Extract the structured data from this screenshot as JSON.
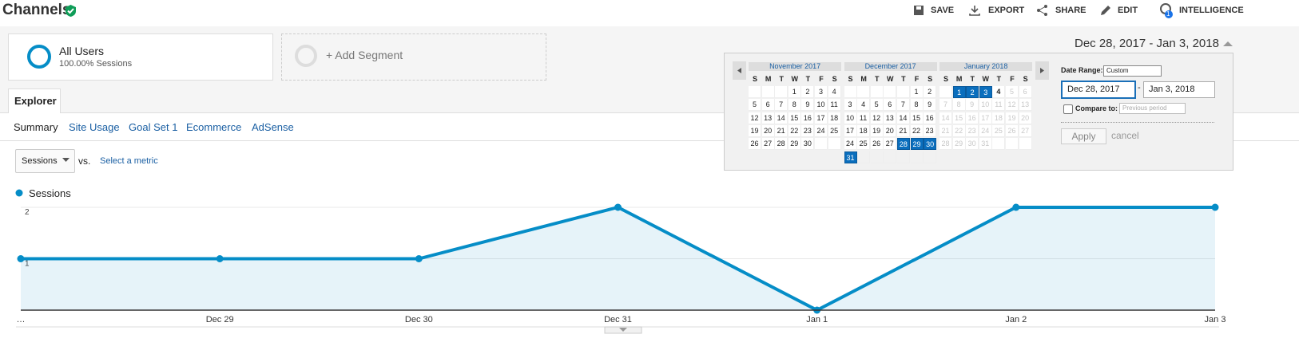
{
  "header": {
    "title": "Channels",
    "actions": [
      "SAVE",
      "EXPORT",
      "SHARE",
      "EDIT",
      "INTELLIGENCE"
    ],
    "badge": 1
  },
  "segments": {
    "primary": {
      "name": "All Users",
      "detail": "100.00% Sessions"
    },
    "add": "+ Add Segment"
  },
  "date_range": "Dec 28, 2017 - Jan 3, 2018",
  "tabs": {
    "main": "Explorer",
    "sub": [
      "Summary",
      "Site Usage",
      "Goal Set 1",
      "Ecommerce",
      "AdSense"
    ]
  },
  "metric": {
    "selected": "Sessions",
    "vs": "vs.",
    "select": "Select a metric"
  },
  "date_picker": {
    "weekdays": [
      "S",
      "M",
      "T",
      "W",
      "T",
      "F",
      "S"
    ],
    "months": [
      {
        "title": "November 2017",
        "weeks": [
          [
            null,
            null,
            null,
            1,
            2,
            3,
            4
          ],
          [
            5,
            6,
            7,
            8,
            9,
            10,
            11
          ],
          [
            12,
            13,
            14,
            15,
            16,
            17,
            18
          ],
          [
            19,
            20,
            21,
            22,
            23,
            24,
            25
          ],
          [
            26,
            27,
            28,
            29,
            30,
            null,
            null
          ]
        ],
        "selected": [],
        "current": null
      },
      {
        "title": "December 2017",
        "weeks": [
          [
            null,
            null,
            null,
            null,
            null,
            1,
            2
          ],
          [
            3,
            4,
            5,
            6,
            7,
            8,
            9
          ],
          [
            10,
            11,
            12,
            13,
            14,
            15,
            16
          ],
          [
            17,
            18,
            19,
            20,
            21,
            22,
            23
          ],
          [
            24,
            25,
            26,
            27,
            28,
            29,
            30
          ],
          [
            31,
            null,
            null,
            null,
            null,
            null,
            null
          ]
        ],
        "selected": [
          28,
          29,
          30,
          31
        ],
        "current": null
      },
      {
        "title": "January 2018",
        "weeks": [
          [
            null,
            1,
            2,
            3,
            4,
            5,
            6
          ],
          [
            7,
            8,
            9,
            10,
            11,
            12,
            13
          ],
          [
            14,
            15,
            16,
            17,
            18,
            19,
            20
          ],
          [
            21,
            22,
            23,
            24,
            25,
            26,
            27
          ],
          [
            28,
            29,
            30,
            31,
            null,
            null,
            null
          ]
        ],
        "selected": [
          1,
          2,
          3
        ],
        "current": 4
      }
    ],
    "range_label": "Date Range:",
    "range_type": "Custom",
    "start": "Dec 28, 2017",
    "separator": "-",
    "end": "Jan 3, 2018",
    "compare_label": "Compare to:",
    "compare_type": "Previous period",
    "apply": "Apply",
    "cancel": "cancel"
  },
  "chart_data": {
    "type": "line",
    "categories": [
      "…",
      "Dec 29",
      "Dec 30",
      "Dec 31",
      "Jan 1",
      "Jan 2",
      "Jan 3"
    ],
    "series": [
      {
        "name": "Sessions",
        "color": "#058dc7",
        "values": [
          1,
          1,
          1,
          2,
          0,
          2,
          2
        ]
      }
    ],
    "ylim": [
      0,
      2
    ],
    "yticks": [
      1,
      2
    ],
    "grid": true,
    "area": true
  }
}
